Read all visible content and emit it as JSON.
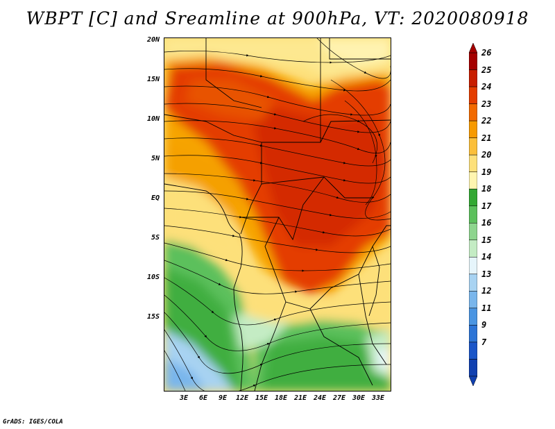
{
  "title": "WBPT [C] and Sreamline at 900hPa, VT: 2020080918",
  "credit": "GrADS: IGES/COLA",
  "lat_labels": [
    "20N",
    "15N",
    "10N",
    "5N",
    "EQ",
    "5S",
    "10S",
    "15S"
  ],
  "lon_labels": [
    "3E",
    "6E",
    "9E",
    "12E",
    "15E",
    "18E",
    "21E",
    "24E",
    "27E",
    "30E",
    "33E"
  ],
  "colorbar": {
    "labels": [
      "26",
      "25",
      "24",
      "23",
      "22",
      "21",
      "20",
      "19",
      "18",
      "17",
      "16",
      "15",
      "14",
      "13",
      "12",
      "11",
      "9",
      "7"
    ],
    "colors": [
      "#a50000",
      "#c81e00",
      "#e43d00",
      "#f26a00",
      "#f79a00",
      "#fbbf3a",
      "#fde07a",
      "#fff5b0",
      "#33a833",
      "#5cc05c",
      "#8ed58e",
      "#c4ecc4",
      "#e6f5fb",
      "#a8d3f2",
      "#79b6ec",
      "#4a95e2",
      "#2c74d6",
      "#1a55c8",
      "#1040b0"
    ]
  }
}
